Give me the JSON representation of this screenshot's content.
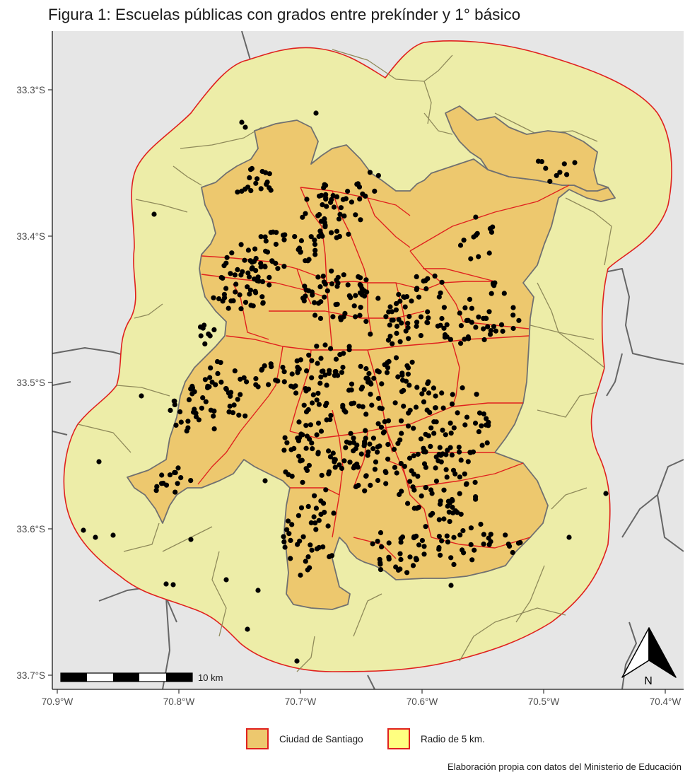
{
  "title": "Figura 1: Escuelas públicas con grados entre prekínder y 1° básico",
  "axes": {
    "x_ticks": [
      "70.9°W",
      "70.8°W",
      "70.7°W",
      "70.6°W",
      "70.5°W",
      "70.4°W"
    ],
    "y_ticks": [
      "33.3°S",
      "33.4°S",
      "33.5°S",
      "33.6°S",
      "33.7°S"
    ]
  },
  "scalebar": {
    "label": "10 km"
  },
  "north_arrow": {
    "label": "N",
    "icon": "north-arrow-icon"
  },
  "legend": [
    {
      "label": "Ciudad de Santiago",
      "color": "#edc86e"
    },
    {
      "label": "Radio de 5 km.",
      "color": "#ffff80"
    }
  ],
  "caption": "Elaboración propia con datos del Ministerio de Educación",
  "colors": {
    "background": "#e6e6e6",
    "buffer_fill": "#ededa8",
    "city_fill": "#edc86e",
    "boundary_red": "#e0211e",
    "boundary_gray": "#707070",
    "schools": "#000000"
  }
}
